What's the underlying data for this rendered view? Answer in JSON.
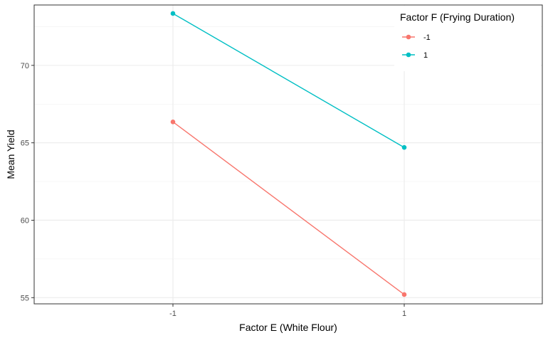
{
  "chart_data": {
    "type": "line",
    "title": "",
    "xlabel": "Factor E (White Flour)",
    "ylabel": "Mean Yield",
    "categories": [
      "-1",
      "1"
    ],
    "yticks": [
      55,
      60,
      65,
      70
    ],
    "ylim": [
      54.6,
      73.9
    ],
    "grid": true,
    "legend": {
      "title": "Factor F (Frying Duration)",
      "placement": "top-right"
    },
    "series": [
      {
        "name": "-1",
        "color": "#F8766D",
        "values": [
          66.35,
          55.2
        ]
      },
      {
        "name": "1",
        "color": "#00BFC4",
        "values": [
          73.35,
          64.7
        ]
      }
    ]
  }
}
